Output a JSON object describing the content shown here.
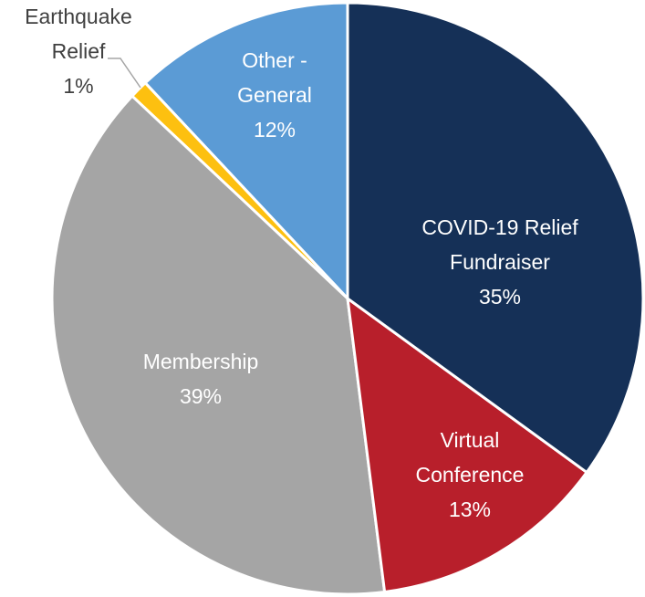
{
  "chart_data": {
    "type": "pie",
    "categories": [
      "COVID-19 Relief Fundraiser",
      "Virtual Conference",
      "Membership",
      "Earthquake Relief",
      "Other - General"
    ],
    "values": [
      35,
      13,
      39,
      1,
      12
    ],
    "value_labels": [
      "35%",
      "13%",
      "39%",
      "1%",
      "12%"
    ],
    "colors": [
      "#153057",
      "#b81f2b",
      "#a5a5a5",
      "#fdc010",
      "#5b9bd5"
    ]
  }
}
